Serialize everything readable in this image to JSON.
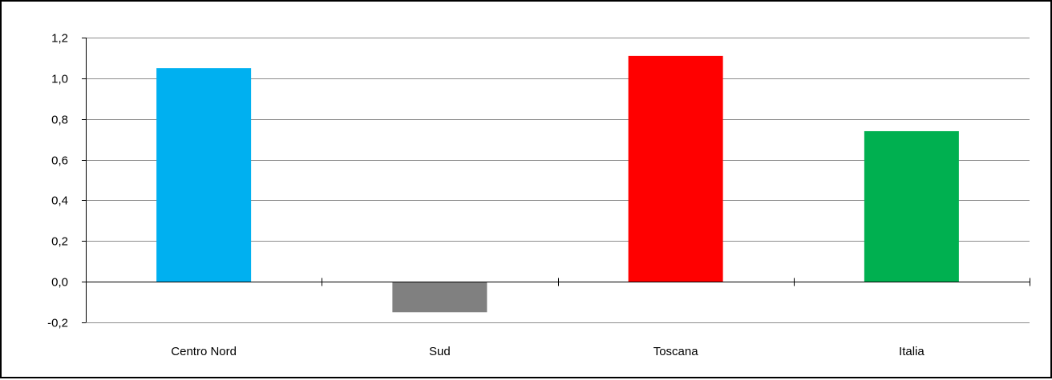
{
  "chart_data": {
    "type": "bar",
    "title": "",
    "xlabel": "",
    "ylabel": "",
    "categories": [
      "Centro Nord",
      "Sud",
      "Toscana",
      "Italia"
    ],
    "values": [
      1.05,
      -0.15,
      1.11,
      0.74
    ],
    "colors": [
      "#00B0F0",
      "#808080",
      "#FF0000",
      "#00B050"
    ],
    "ylim": [
      -0.2,
      1.2
    ],
    "yticks": [
      "1,2",
      "1,0",
      "0,8",
      "0,6",
      "0,4",
      "0,2",
      "0,0",
      "-0,2"
    ],
    "ytick_values": [
      1.2,
      1.0,
      0.8,
      0.6,
      0.4,
      0.2,
      0.0,
      -0.2
    ],
    "grid": true,
    "legend": "none"
  }
}
